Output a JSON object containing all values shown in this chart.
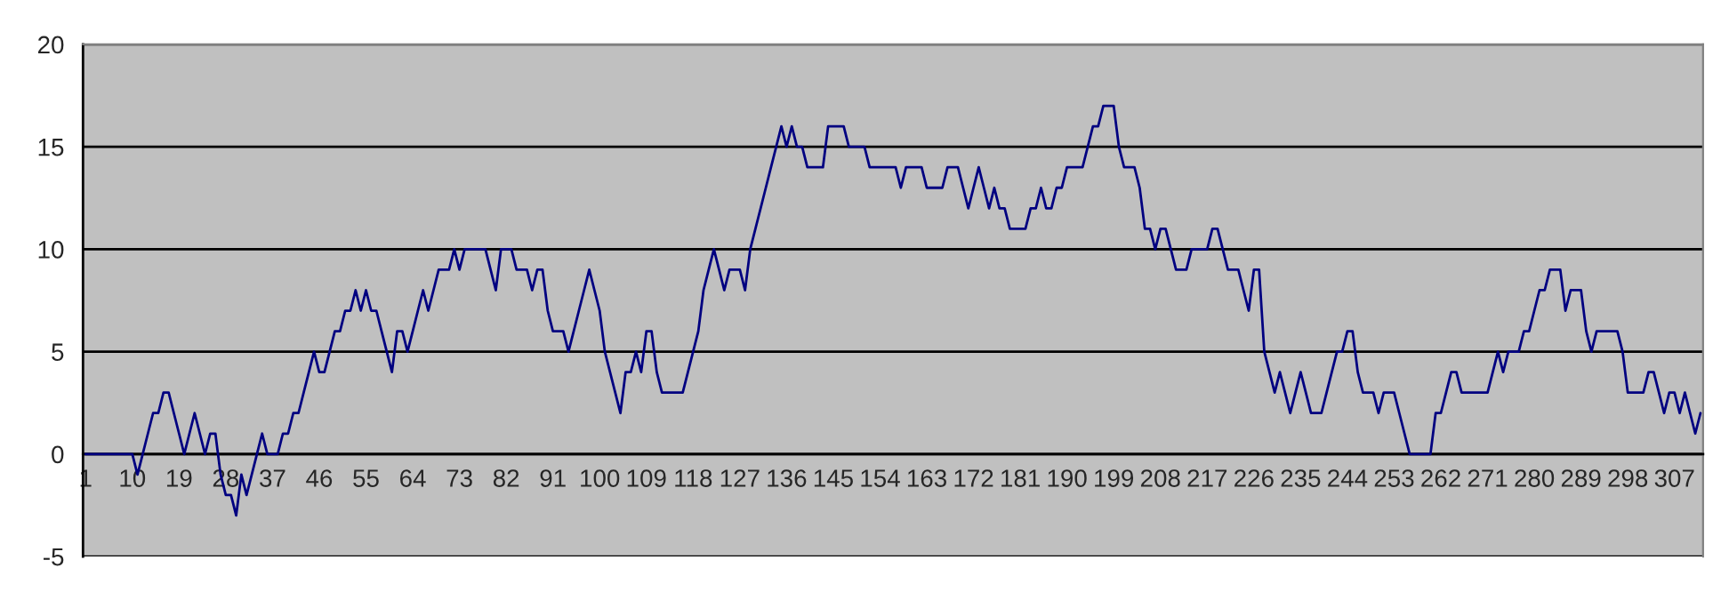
{
  "chart_data": {
    "type": "line",
    "categories": [
      "1",
      null,
      null,
      null,
      null,
      null,
      null,
      null,
      null,
      "10",
      null,
      null,
      null,
      null,
      null,
      null,
      null,
      null,
      "19",
      null,
      null,
      null,
      null,
      null,
      null,
      null,
      null,
      "28",
      null,
      null,
      null,
      null,
      null,
      null,
      null,
      null,
      "37",
      null,
      null,
      null,
      null,
      null,
      null,
      null,
      null,
      "46",
      null,
      null,
      null,
      null,
      null,
      null,
      null,
      null,
      "55",
      null,
      null,
      null,
      null,
      null,
      null,
      null,
      null,
      "64",
      null,
      null,
      null,
      null,
      null,
      null,
      null,
      null,
      "73",
      null,
      null,
      null,
      null,
      null,
      null,
      null,
      null,
      "82",
      null,
      null,
      null,
      null,
      null,
      null,
      null,
      null,
      "91",
      null,
      null,
      null,
      null,
      null,
      null,
      null,
      null,
      "100",
      null,
      null,
      null,
      null,
      null,
      null,
      null,
      null,
      "109",
      null,
      null,
      null,
      null,
      null,
      null,
      null,
      null,
      "118",
      null,
      null,
      null,
      null,
      null,
      null,
      null,
      null,
      "127",
      null,
      null,
      null,
      null,
      null,
      null,
      null,
      null,
      "136",
      null,
      null,
      null,
      null,
      null,
      null,
      null,
      null,
      "145",
      null,
      null,
      null,
      null,
      null,
      null,
      null,
      null,
      "154",
      null,
      null,
      null,
      null,
      null,
      null,
      null,
      null,
      "163",
      null,
      null,
      null,
      null,
      null,
      null,
      null,
      null,
      "172",
      null,
      null,
      null,
      null,
      null,
      null,
      null,
      null,
      "181",
      null,
      null,
      null,
      null,
      null,
      null,
      null,
      null,
      "190",
      null,
      null,
      null,
      null,
      null,
      null,
      null,
      null,
      "199",
      null,
      null,
      null,
      null,
      null,
      null,
      null,
      null,
      "208",
      null,
      null,
      null,
      null,
      null,
      null,
      null,
      null,
      "217",
      null,
      null,
      null,
      null,
      null,
      null,
      null,
      null,
      "226",
      null,
      null,
      null,
      null,
      null,
      null,
      null,
      null,
      "235",
      null,
      null,
      null,
      null,
      null,
      null,
      null,
      null,
      "244",
      null,
      null,
      null,
      null,
      null,
      null,
      null,
      null,
      "253",
      null,
      null,
      null,
      null,
      null,
      null,
      null,
      null,
      "262",
      null,
      null,
      null,
      null,
      null,
      null,
      null,
      null,
      "271",
      null,
      null,
      null,
      null,
      null,
      null,
      null,
      null,
      "280",
      null,
      null,
      null,
      null,
      null,
      null,
      null,
      null,
      "289",
      null,
      null,
      null,
      null,
      null,
      null,
      null,
      null,
      "298",
      null,
      null,
      null,
      null,
      null,
      null,
      null,
      null,
      "307",
      null,
      null,
      null,
      null,
      null
    ],
    "series": [
      {
        "color": "#000080",
        "values": [
          0,
          0,
          0,
          0,
          0,
          0,
          0,
          0,
          0,
          0,
          -1,
          0,
          1,
          2,
          2,
          3,
          3,
          2,
          1,
          0,
          1,
          2,
          1,
          0,
          1,
          1,
          -1,
          -2,
          -2,
          -3,
          -1,
          -2,
          -1,
          0,
          1,
          0,
          0,
          0,
          1,
          1,
          2,
          2,
          3,
          4,
          5,
          4,
          4,
          5,
          6,
          6,
          7,
          7,
          8,
          7,
          8,
          7,
          7,
          6,
          5,
          4,
          6,
          6,
          5,
          6,
          7,
          8,
          7,
          8,
          9,
          9,
          9,
          10,
          9,
          10,
          10,
          10,
          10,
          10,
          9,
          8,
          10,
          10,
          10,
          9,
          9,
          9,
          8,
          9,
          9,
          7,
          6,
          6,
          6,
          5,
          6,
          7,
          8,
          9,
          8,
          7,
          5,
          4,
          3,
          2,
          4,
          4,
          5,
          4,
          6,
          6,
          4,
          3,
          3,
          3,
          3,
          3,
          4,
          5,
          6,
          8,
          9,
          10,
          9,
          8,
          9,
          9,
          9,
          8,
          10,
          11,
          12,
          13,
          14,
          15,
          16,
          15,
          16,
          15,
          15,
          14,
          14,
          14,
          14,
          16,
          16,
          16,
          16,
          15,
          15,
          15,
          15,
          14,
          14,
          14,
          14,
          14,
          14,
          13,
          14,
          14,
          14,
          14,
          13,
          13,
          13,
          13,
          14,
          14,
          14,
          13,
          12,
          13,
          14,
          13,
          12,
          13,
          12,
          12,
          11,
          11,
          11,
          11,
          12,
          12,
          13,
          12,
          12,
          13,
          13,
          14,
          14,
          14,
          14,
          15,
          16,
          16,
          17,
          17,
          17,
          15,
          14,
          14,
          14,
          13,
          11,
          11,
          10,
          11,
          11,
          10,
          9,
          9,
          9,
          10,
          10,
          10,
          10,
          11,
          11,
          10,
          9,
          9,
          9,
          8,
          7,
          9,
          9,
          5,
          4,
          3,
          4,
          3,
          2,
          3,
          4,
          3,
          2,
          2,
          2,
          3,
          4,
          5,
          5,
          6,
          6,
          4,
          3,
          3,
          3,
          2,
          3,
          3,
          3,
          2,
          1,
          0,
          0,
          0,
          0,
          0,
          2,
          2,
          3,
          4,
          4,
          3,
          3,
          3,
          3,
          3,
          3,
          4,
          5,
          4,
          5,
          5,
          5,
          6,
          6,
          7,
          8,
          8,
          9,
          9,
          9,
          7,
          8,
          8,
          8,
          6,
          5,
          6,
          6,
          6,
          6,
          6,
          5,
          3,
          3,
          3,
          3,
          4,
          4,
          3,
          2,
          3,
          3,
          2,
          3,
          2,
          1,
          2
        ]
      }
    ],
    "ylim": [
      -5,
      20
    ],
    "yticks": [
      {
        "value": -5,
        "label": "-5"
      },
      0,
      5,
      10,
      15,
      20
    ],
    "grid": "y",
    "marker": "none",
    "line_style": "solid"
  }
}
